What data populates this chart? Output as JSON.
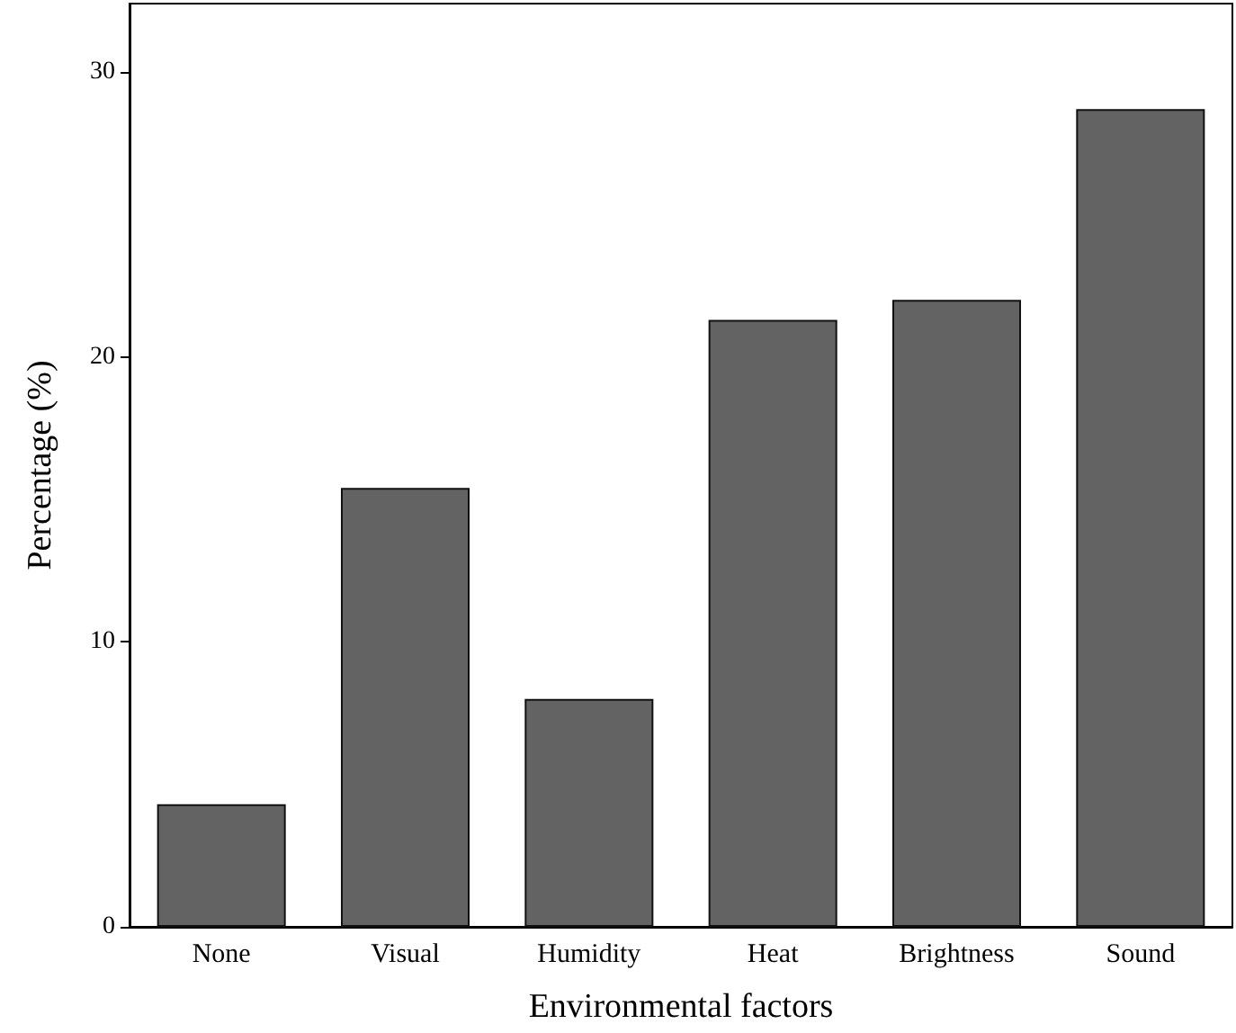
{
  "chart_data": {
    "type": "bar",
    "xlabel": "Environmental factors",
    "ylabel": "Percentage (%)",
    "categories": [
      "None",
      "Visual",
      "Humidity",
      "Heat",
      "Brightness",
      "Sound"
    ],
    "values": [
      4.3,
      15.4,
      8.0,
      21.3,
      22.0,
      28.7
    ],
    "color": "#636363",
    "ylim": [
      0,
      32.4
    ],
    "yticks": [
      0,
      10,
      20,
      30
    ],
    "grid": false
  }
}
